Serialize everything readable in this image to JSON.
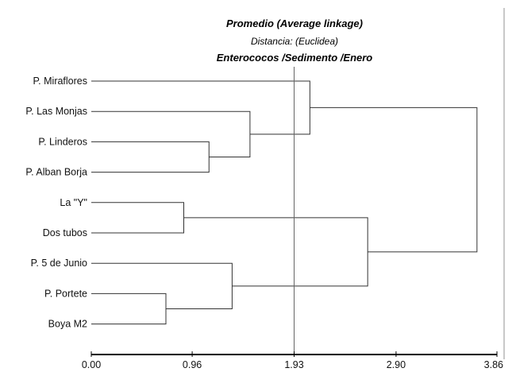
{
  "chart_data": {
    "type": "dendrogram",
    "title": "Promedio (Average linkage)",
    "subtitle": "Distancia: (Euclidea)",
    "title2": "Enterococos /Sedimento /Enero",
    "xaxis": {
      "ticks": [
        0.0,
        0.96,
        1.93,
        2.9,
        3.86
      ],
      "tick_labels": [
        "0.00",
        "0.96",
        "1.93",
        "2.90",
        "3.86"
      ],
      "range": [
        0,
        3.86
      ]
    },
    "cut_line": 1.93,
    "leaves": [
      "P. Miraflores",
      "P. Las Monjas",
      "P. Linderos",
      "P. Alban Borja",
      "La \"Y\"",
      "Dos tubos",
      "P. 5 de Junio",
      "P. Portete",
      "Boya M2"
    ],
    "merges": [
      {
        "id": "m1",
        "left": "P. Linderos",
        "right": "P. Alban Borja",
        "height": 1.12
      },
      {
        "id": "m2",
        "left": "P. Las Monjas",
        "right": "m1",
        "height": 1.51
      },
      {
        "id": "m3",
        "left": "P. Miraflores",
        "right": "m2",
        "height": 2.08
      },
      {
        "id": "m4",
        "left": "La \"Y\"",
        "right": "Dos tubos",
        "height": 0.88
      },
      {
        "id": "m5",
        "left": "P. Portete",
        "right": "Boya M2",
        "height": 0.71
      },
      {
        "id": "m6",
        "left": "P. 5 de Junio",
        "right": "m5",
        "height": 1.34
      },
      {
        "id": "m7",
        "left": "m4",
        "right": "m6",
        "height": 2.63
      },
      {
        "id": "m8",
        "left": "m3",
        "right": "m7",
        "height": 3.67
      }
    ]
  }
}
